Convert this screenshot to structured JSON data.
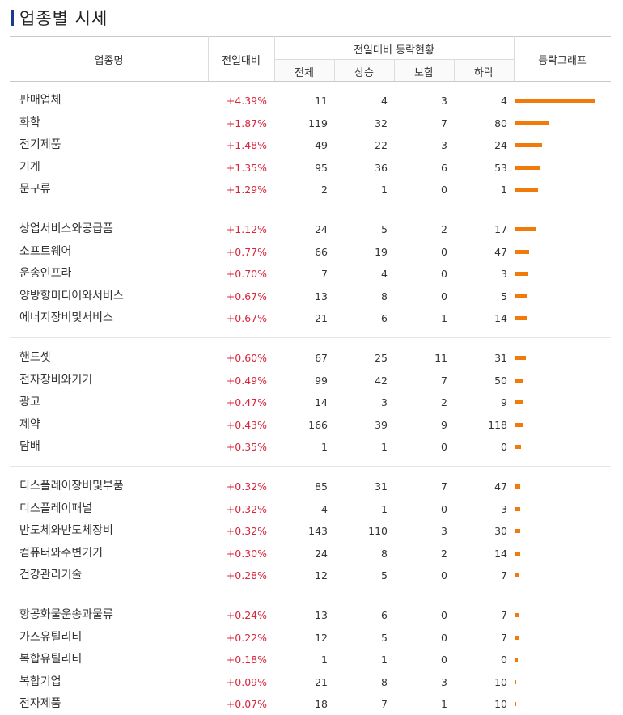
{
  "page": {
    "title": "업종별 시세"
  },
  "header": {
    "col_name": "업종명",
    "col_change": "전일대비",
    "col_group": "전일대비 등락현황",
    "col_total": "전체",
    "col_up": "상승",
    "col_flat": "보합",
    "col_down": "하락",
    "col_graph": "등락그래프"
  },
  "colors": {
    "up": "#d7263d",
    "bar": "#f07a0a",
    "title_mark": "#1a3b8f"
  },
  "groups": [
    [
      {
        "name": "판매업체",
        "change": "+4.39%",
        "change_pct": 4.39,
        "total": "11",
        "up": "4",
        "flat": "3",
        "down": "4"
      },
      {
        "name": "화학",
        "change": "+1.87%",
        "change_pct": 1.87,
        "total": "119",
        "up": "32",
        "flat": "7",
        "down": "80"
      },
      {
        "name": "전기제품",
        "change": "+1.48%",
        "change_pct": 1.48,
        "total": "49",
        "up": "22",
        "flat": "3",
        "down": "24"
      },
      {
        "name": "기계",
        "change": "+1.35%",
        "change_pct": 1.35,
        "total": "95",
        "up": "36",
        "flat": "6",
        "down": "53"
      },
      {
        "name": "문구류",
        "change": "+1.29%",
        "change_pct": 1.29,
        "total": "2",
        "up": "1",
        "flat": "0",
        "down": "1"
      }
    ],
    [
      {
        "name": "상업서비스와공급품",
        "change": "+1.12%",
        "change_pct": 1.12,
        "total": "24",
        "up": "5",
        "flat": "2",
        "down": "17"
      },
      {
        "name": "소프트웨어",
        "change": "+0.77%",
        "change_pct": 0.77,
        "total": "66",
        "up": "19",
        "flat": "0",
        "down": "47"
      },
      {
        "name": "운송인프라",
        "change": "+0.70%",
        "change_pct": 0.7,
        "total": "7",
        "up": "4",
        "flat": "0",
        "down": "3"
      },
      {
        "name": "양방향미디어와서비스",
        "change": "+0.67%",
        "change_pct": 0.67,
        "total": "13",
        "up": "8",
        "flat": "0",
        "down": "5"
      },
      {
        "name": "에너지장비및서비스",
        "change": "+0.67%",
        "change_pct": 0.67,
        "total": "21",
        "up": "6",
        "flat": "1",
        "down": "14"
      }
    ],
    [
      {
        "name": "핸드셋",
        "change": "+0.60%",
        "change_pct": 0.6,
        "total": "67",
        "up": "25",
        "flat": "11",
        "down": "31"
      },
      {
        "name": "전자장비와기기",
        "change": "+0.49%",
        "change_pct": 0.49,
        "total": "99",
        "up": "42",
        "flat": "7",
        "down": "50"
      },
      {
        "name": "광고",
        "change": "+0.47%",
        "change_pct": 0.47,
        "total": "14",
        "up": "3",
        "flat": "2",
        "down": "9"
      },
      {
        "name": "제약",
        "change": "+0.43%",
        "change_pct": 0.43,
        "total": "166",
        "up": "39",
        "flat": "9",
        "down": "118"
      },
      {
        "name": "담배",
        "change": "+0.35%",
        "change_pct": 0.35,
        "total": "1",
        "up": "1",
        "flat": "0",
        "down": "0"
      }
    ],
    [
      {
        "name": "디스플레이장비및부품",
        "change": "+0.32%",
        "change_pct": 0.32,
        "total": "85",
        "up": "31",
        "flat": "7",
        "down": "47"
      },
      {
        "name": "디스플레이패널",
        "change": "+0.32%",
        "change_pct": 0.32,
        "total": "4",
        "up": "1",
        "flat": "0",
        "down": "3"
      },
      {
        "name": "반도체와반도체장비",
        "change": "+0.32%",
        "change_pct": 0.32,
        "total": "143",
        "up": "110",
        "flat": "3",
        "down": "30"
      },
      {
        "name": "컴퓨터와주변기기",
        "change": "+0.30%",
        "change_pct": 0.3,
        "total": "24",
        "up": "8",
        "flat": "2",
        "down": "14"
      },
      {
        "name": "건강관리기술",
        "change": "+0.28%",
        "change_pct": 0.28,
        "total": "12",
        "up": "5",
        "flat": "0",
        "down": "7"
      }
    ],
    [
      {
        "name": "항공화물운송과물류",
        "change": "+0.24%",
        "change_pct": 0.24,
        "total": "13",
        "up": "6",
        "flat": "0",
        "down": "7"
      },
      {
        "name": "가스유틸리티",
        "change": "+0.22%",
        "change_pct": 0.22,
        "total": "12",
        "up": "5",
        "flat": "0",
        "down": "7"
      },
      {
        "name": "복합유틸리티",
        "change": "+0.18%",
        "change_pct": 0.18,
        "total": "1",
        "up": "1",
        "flat": "0",
        "down": "0"
      },
      {
        "name": "복합기업",
        "change": "+0.09%",
        "change_pct": 0.09,
        "total": "21",
        "up": "8",
        "flat": "3",
        "down": "10"
      },
      {
        "name": "전자제품",
        "change": "+0.07%",
        "change_pct": 0.07,
        "total": "18",
        "up": "7",
        "flat": "1",
        "down": "10"
      }
    ]
  ]
}
